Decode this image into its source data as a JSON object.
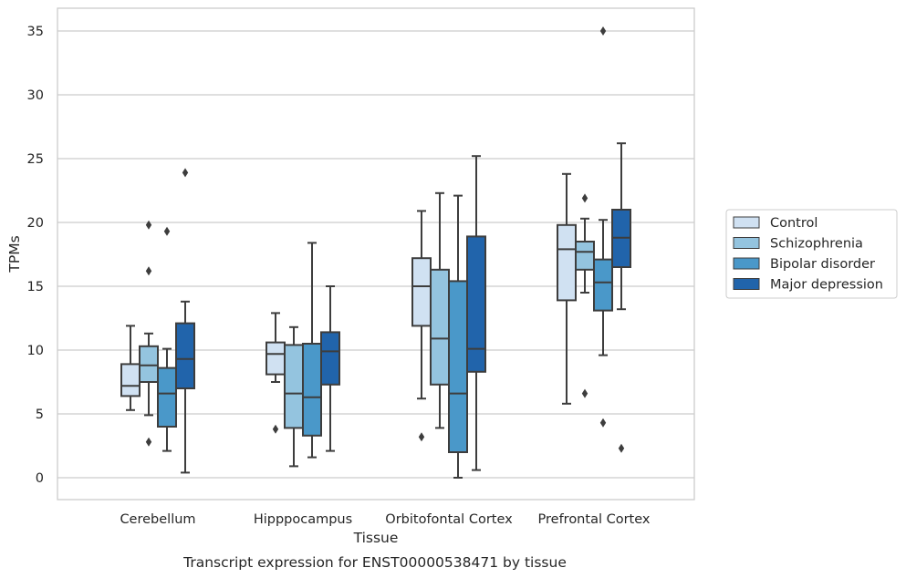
{
  "chart_data": {
    "type": "boxplot",
    "caption": "Transcript expression for ENST00000538471 by tissue",
    "xlabel": "Tissue",
    "ylabel": "TPMs",
    "ylim": [
      -1.7,
      36.8
    ],
    "yticks": [
      0,
      5,
      10,
      15,
      20,
      25,
      30,
      35
    ],
    "grid": "horizontal",
    "legend_position": "right",
    "categories": [
      "Cerebellum",
      "Hipppocampus",
      "Orbitofontal Cortex",
      "Prefrontal Cortex"
    ],
    "series": [
      {
        "name": "Control",
        "color": "#d0e1f2",
        "boxes": [
          {
            "whislo": 5.3,
            "q1": 6.4,
            "med": 7.2,
            "q3": 8.9,
            "whishi": 11.9,
            "fliers": []
          },
          {
            "whislo": 7.5,
            "q1": 8.1,
            "med": 9.7,
            "q3": 10.6,
            "whishi": 12.9,
            "fliers": [
              3.8
            ]
          },
          {
            "whislo": 6.2,
            "q1": 11.9,
            "med": 15.0,
            "q3": 17.2,
            "whishi": 20.9,
            "fliers": [
              3.2
            ]
          },
          {
            "whislo": 5.8,
            "q1": 13.9,
            "med": 17.9,
            "q3": 19.8,
            "whishi": 23.8,
            "fliers": []
          }
        ]
      },
      {
        "name": "Schizophrenia",
        "color": "#94c4df",
        "boxes": [
          {
            "whislo": 4.9,
            "q1": 7.5,
            "med": 8.8,
            "q3": 10.3,
            "whishi": 11.3,
            "fliers": [
              2.8,
              16.2,
              19.8
            ]
          },
          {
            "whislo": 0.9,
            "q1": 3.9,
            "med": 6.6,
            "q3": 10.4,
            "whishi": 11.8,
            "fliers": []
          },
          {
            "whislo": 3.9,
            "q1": 7.3,
            "med": 10.9,
            "q3": 16.3,
            "whishi": 22.3,
            "fliers": []
          },
          {
            "whislo": 14.5,
            "q1": 16.3,
            "med": 17.7,
            "q3": 18.5,
            "whishi": 20.3,
            "fliers": [
              6.6,
              21.9
            ]
          }
        ]
      },
      {
        "name": "Bipolar disorder",
        "color": "#4a98c9",
        "boxes": [
          {
            "whislo": 2.1,
            "q1": 4.0,
            "med": 6.6,
            "q3": 8.6,
            "whishi": 10.1,
            "fliers": [
              19.3
            ]
          },
          {
            "whislo": 1.6,
            "q1": 3.3,
            "med": 6.3,
            "q3": 10.5,
            "whishi": 18.4,
            "fliers": []
          },
          {
            "whislo": 0.0,
            "q1": 2.0,
            "med": 6.6,
            "q3": 15.4,
            "whishi": 22.1,
            "fliers": []
          },
          {
            "whislo": 9.6,
            "q1": 13.1,
            "med": 15.3,
            "q3": 17.1,
            "whishi": 20.2,
            "fliers": [
              4.3,
              35.0
            ]
          }
        ]
      },
      {
        "name": "Major depression",
        "color": "#2164ab",
        "boxes": [
          {
            "whislo": 0.4,
            "q1": 7.0,
            "med": 9.3,
            "q3": 12.1,
            "whishi": 13.8,
            "fliers": [
              23.9
            ]
          },
          {
            "whislo": 2.1,
            "q1": 7.3,
            "med": 9.9,
            "q3": 11.4,
            "whishi": 15.0,
            "fliers": []
          },
          {
            "whislo": 0.6,
            "q1": 8.3,
            "med": 10.1,
            "q3": 18.9,
            "whishi": 25.2,
            "fliers": []
          },
          {
            "whislo": 13.2,
            "q1": 16.5,
            "med": 18.8,
            "q3": 21.0,
            "whishi": 26.2,
            "fliers": [
              2.3
            ]
          }
        ]
      }
    ]
  }
}
